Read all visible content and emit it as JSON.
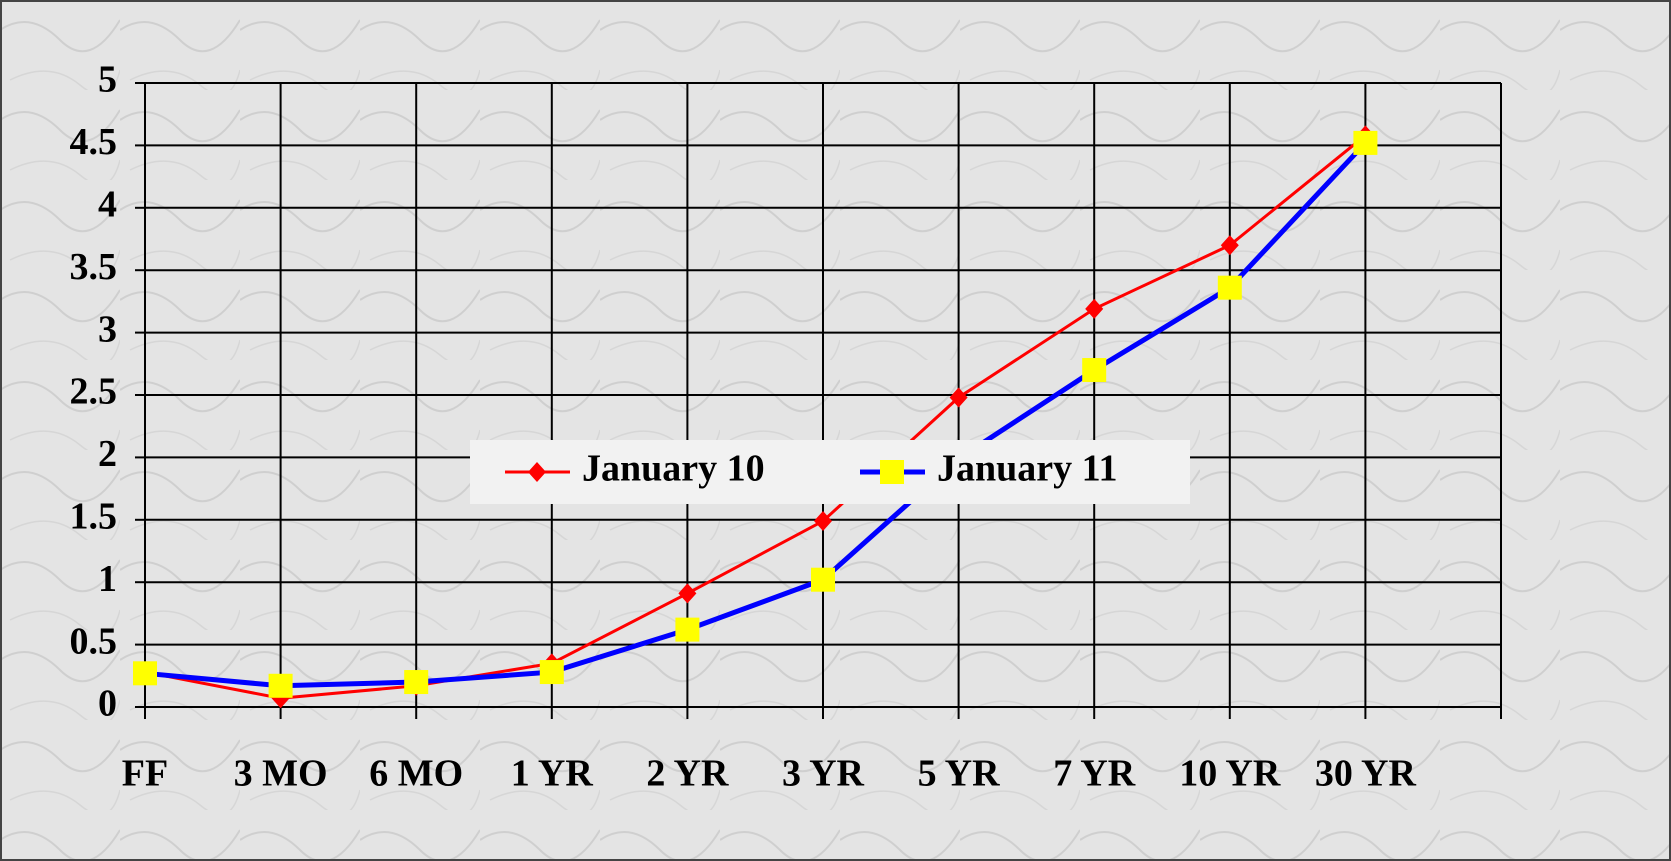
{
  "chart_data": {
    "type": "line",
    "categories": [
      "FF",
      "3 MO",
      "6 MO",
      "1 YR",
      "2 YR",
      "3 YR",
      "5 YR",
      "7 YR",
      "10 YR",
      "30 YR"
    ],
    "series": [
      {
        "name": "January 10",
        "color": "#ff0000",
        "marker": "diamond",
        "marker_color": "#ff0000",
        "values": [
          0.28,
          0.07,
          0.17,
          0.35,
          0.91,
          1.49,
          2.48,
          3.19,
          3.7,
          4.58
        ]
      },
      {
        "name": "January 11",
        "color": "#0000ff",
        "marker": "square",
        "marker_color": "#ffff00",
        "values": [
          0.27,
          0.17,
          0.2,
          0.28,
          0.62,
          1.02,
          1.99,
          2.7,
          3.36,
          4.52
        ]
      }
    ],
    "ylim": [
      0,
      5
    ],
    "yticks": [
      0,
      0.5,
      1,
      1.5,
      2,
      2.5,
      3,
      3.5,
      4,
      4.5,
      5
    ],
    "grid": true,
    "legend": "center"
  }
}
